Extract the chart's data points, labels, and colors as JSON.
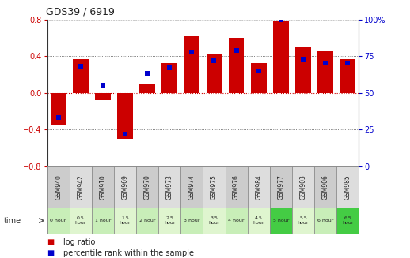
{
  "title": "GDS39 / 6919",
  "samples": [
    "GSM940",
    "GSM942",
    "GSM910",
    "GSM969",
    "GSM970",
    "GSM973",
    "GSM974",
    "GSM975",
    "GSM976",
    "GSM984",
    "GSM977",
    "GSM903",
    "GSM906",
    "GSM985"
  ],
  "time_labels": [
    "0 hour",
    "0.5\nhour",
    "1 hour",
    "1.5\nhour",
    "2 hour",
    "2.5\nhour",
    "3 hour",
    "3.5\nhour",
    "4 hour",
    "4.5\nhour",
    "5 hour",
    "5.5\nhour",
    "6 hour",
    "6.5\nhour"
  ],
  "log_ratio": [
    -0.35,
    0.37,
    -0.08,
    -0.5,
    0.1,
    0.32,
    0.62,
    0.42,
    0.6,
    0.32,
    0.79,
    0.5,
    0.45,
    0.37
  ],
  "percentile": [
    33,
    68,
    55,
    22,
    63,
    67,
    78,
    72,
    79,
    65,
    100,
    73,
    70,
    70
  ],
  "time_bg_colors": [
    "#c8eeb8",
    "#dff5cf",
    "#c8eeb8",
    "#dff5cf",
    "#c8eeb8",
    "#dff5cf",
    "#c8eeb8",
    "#dff5cf",
    "#c8eeb8",
    "#dff5cf",
    "#44cc44",
    "#dff5cf",
    "#c8eeb8",
    "#44cc44"
  ],
  "bar_color": "#cc0000",
  "dot_color": "#0000cc",
  "ylim_left": [
    -0.8,
    0.8
  ],
  "ylim_right": [
    0,
    100
  ],
  "yticks_left": [
    -0.8,
    -0.4,
    0.0,
    0.4,
    0.8
  ],
  "yticks_right": [
    0,
    25,
    50,
    75,
    100
  ],
  "hline_color": "#cc0000",
  "dotline_color": "#555555",
  "bg_color": "#ffffff",
  "sample_bg_even": "#cccccc",
  "sample_bg_odd": "#dddddd"
}
